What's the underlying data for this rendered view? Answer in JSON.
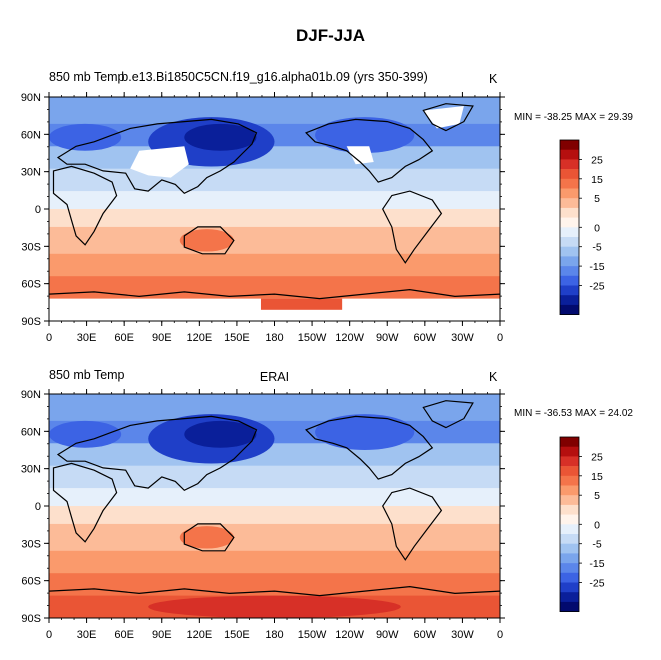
{
  "title": "DJF-JJA",
  "panels": [
    {
      "left_title": "850 mb Temp",
      "center_title": "b.e13.Bi1850C5CN.f19_g16.alpha01b.09 (yrs 350-399)",
      "units": "K",
      "minmax_label": "MIN = -38.25 MAX =  29.39",
      "min": -38.25,
      "max": 29.39
    },
    {
      "left_title": "850 mb Temp",
      "center_title": "ERAI",
      "units": "K",
      "minmax_label": "MIN = -36.53 MAX =  24.02",
      "min": -36.53,
      "max": 24.02
    }
  ],
  "lat_labels": [
    "90N",
    "60N",
    "30N",
    "0",
    "30S",
    "60S",
    "90S"
  ],
  "lon_labels": [
    "0",
    "30E",
    "60E",
    "90E",
    "120E",
    "150E",
    "180",
    "150W",
    "120W",
    "90W",
    "60W",
    "30W",
    "0"
  ],
  "colorbar": {
    "labels": [
      "25",
      "15",
      "5",
      "0",
      "-5",
      "-15",
      "-25"
    ],
    "colors": [
      "#800000",
      "#b50f0f",
      "#d73027",
      "#ea5535",
      "#f4744a",
      "#fa9a6c",
      "#fcbb98",
      "#fde0cc",
      "#fff4ec",
      "#e6f0fb",
      "#c6dbf5",
      "#a0c3f0",
      "#7aa5ec",
      "#5b86ea",
      "#3c63e4",
      "#1f3fc8",
      "#0a1f9a",
      "#020a6e"
    ]
  }
}
